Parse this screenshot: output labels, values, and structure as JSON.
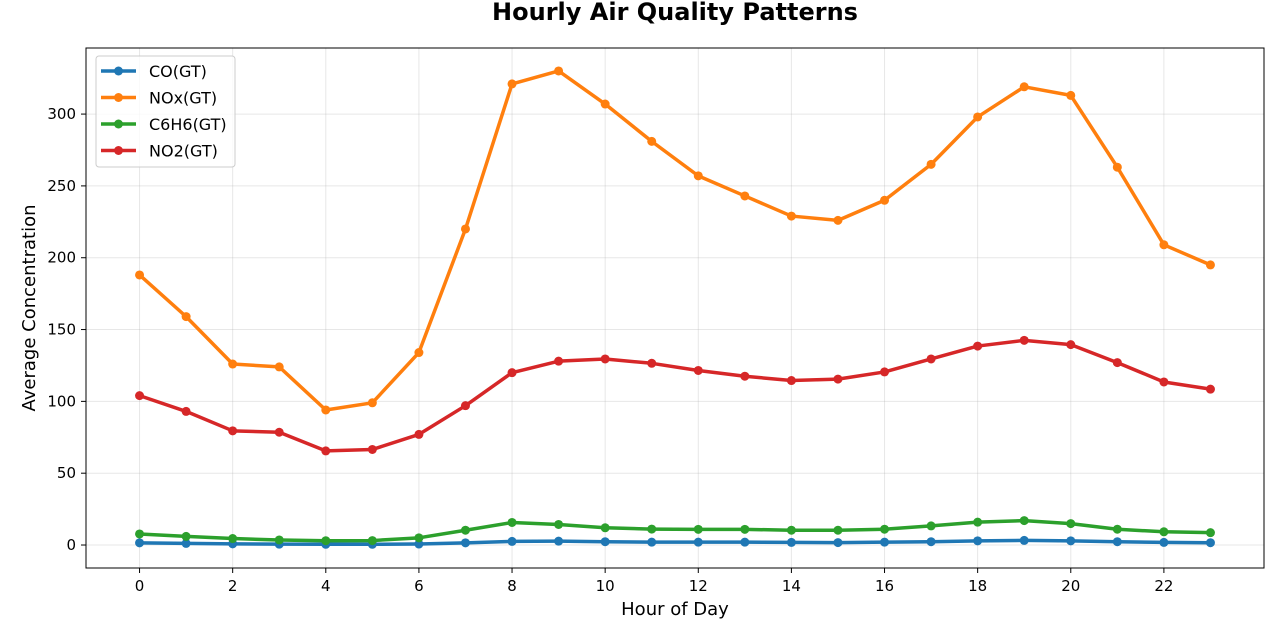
{
  "chart_data": {
    "type": "line",
    "title": "Hourly Air Quality Patterns",
    "xlabel": "Hour of Day",
    "ylabel": "Average Concentration",
    "x": [
      0,
      1,
      2,
      3,
      4,
      5,
      6,
      7,
      8,
      9,
      10,
      11,
      12,
      13,
      14,
      15,
      16,
      17,
      18,
      19,
      20,
      21,
      22,
      23
    ],
    "xticks": [
      0,
      2,
      4,
      6,
      8,
      10,
      12,
      14,
      16,
      18,
      20,
      22
    ],
    "yticks": [
      0,
      50,
      100,
      150,
      200,
      250,
      300
    ],
    "xlim": [
      -1.15,
      24.15
    ],
    "ylim": [
      -16,
      346
    ],
    "grid": true,
    "legend_position": "upper-left",
    "series": [
      {
        "name": "CO(GT)",
        "color": "#1f77b4",
        "values": [
          1.5,
          1.1,
          0.8,
          0.6,
          0.5,
          0.5,
          0.7,
          1.5,
          2.5,
          2.7,
          2.3,
          2.0,
          2.0,
          2.0,
          1.8,
          1.7,
          2.0,
          2.3,
          2.9,
          3.2,
          2.9,
          2.3,
          1.8,
          1.6
        ]
      },
      {
        "name": "NOx(GT)",
        "color": "#ff7f0e",
        "values": [
          188,
          159,
          126,
          124,
          94,
          99,
          134,
          220,
          321,
          330,
          307,
          281,
          257,
          243,
          229,
          226,
          240,
          265,
          298,
          319,
          313,
          263,
          209,
          195
        ]
      },
      {
        "name": "C6H6(GT)",
        "color": "#2ca02c",
        "values": [
          7.7,
          6.0,
          4.5,
          3.5,
          3.0,
          3.1,
          5.0,
          10.3,
          15.7,
          14.3,
          12.0,
          11.1,
          10.9,
          10.9,
          10.3,
          10.3,
          11.0,
          13.3,
          15.9,
          17.0,
          14.9,
          11.0,
          9.2,
          8.6
        ]
      },
      {
        "name": "NO2(GT)",
        "color": "#d62728",
        "values": [
          104,
          93,
          79.5,
          78.5,
          65.5,
          66.5,
          77,
          97,
          120,
          128,
          129.5,
          126.5,
          121.5,
          117.5,
          114.5,
          115.5,
          120.5,
          129.5,
          138.5,
          142.5,
          139.5,
          127,
          113.5,
          108.5
        ]
      }
    ]
  }
}
